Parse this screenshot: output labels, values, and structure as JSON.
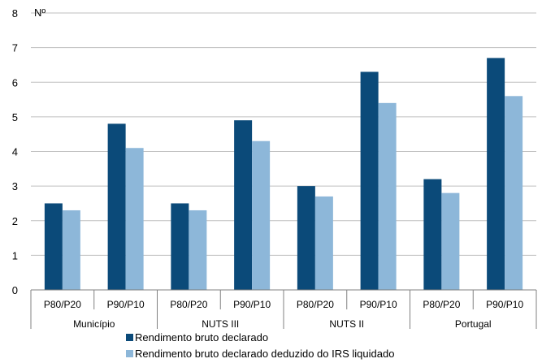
{
  "chart_data": {
    "type": "bar",
    "ylabel": "Nº",
    "ylim": [
      0,
      8
    ],
    "yticks": [
      "0",
      "1",
      "2",
      "3",
      "4",
      "5",
      "6",
      "7",
      "8"
    ],
    "grid": true,
    "legend_position": "bottom",
    "groups": [
      {
        "label": "Município",
        "categories": [
          "P80/P20",
          "P90/P10"
        ]
      },
      {
        "label": "NUTS III",
        "categories": [
          "P80/P20",
          "P90/P10"
        ]
      },
      {
        "label": "NUTS II",
        "categories": [
          "P80/P20",
          "P90/P10"
        ]
      },
      {
        "label": "Portugal",
        "categories": [
          "P80/P20",
          "P90/P10"
        ]
      }
    ],
    "series": [
      {
        "name": "Rendimento bruto declarado",
        "color": "#0B4A79",
        "values": [
          2.5,
          4.8,
          2.5,
          4.9,
          3.0,
          6.3,
          3.2,
          6.7
        ]
      },
      {
        "name": "Rendimento bruto declarado deduzido do IRS liquidado",
        "color": "#8DB7D9",
        "values": [
          2.3,
          4.1,
          2.3,
          4.3,
          2.7,
          5.4,
          2.8,
          5.6
        ]
      }
    ]
  }
}
